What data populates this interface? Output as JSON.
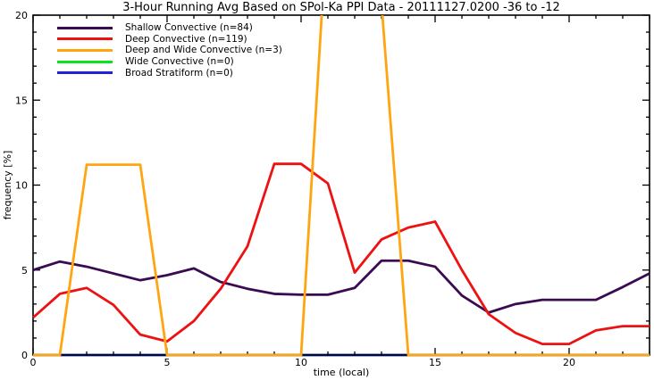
{
  "chart_data": {
    "type": "line",
    "title": "3-Hour Running Avg Based on SPol-Ka PPI Data - 20111127.0200 -36 to -12",
    "xlabel": "time (local)",
    "ylabel": "frequency [%]",
    "xlim": [
      0,
      23
    ],
    "ylim": [
      0,
      20
    ],
    "x_major_ticks": [
      0,
      5,
      10,
      15,
      20
    ],
    "x_minor_step": 1,
    "y_major_ticks": [
      0,
      5,
      10,
      15,
      20
    ],
    "y_minor_step": 1,
    "grid": false,
    "legend_position": "top-left",
    "axis_color": "#000000",
    "x": [
      0,
      1,
      2,
      3,
      4,
      5,
      6,
      7,
      8,
      9,
      10,
      11,
      12,
      13,
      14,
      15,
      16,
      17,
      18,
      19,
      20,
      21,
      22,
      23
    ],
    "series": [
      {
        "name": "Shallow Convective (n=84)",
        "color": "#3a0b52",
        "values": [
          5.0,
          5.5,
          5.2,
          4.8,
          4.4,
          4.7,
          5.1,
          4.3,
          3.9,
          3.6,
          3.55,
          3.55,
          3.95,
          5.55,
          5.55,
          5.2,
          3.5,
          2.5,
          3.0,
          3.25,
          3.25,
          3.25,
          4.0,
          4.8
        ]
      },
      {
        "name": "Deep Convective (n=119)",
        "color": "#ee1111",
        "values": [
          2.2,
          3.6,
          3.95,
          2.95,
          1.2,
          0.8,
          2.0,
          3.9,
          6.4,
          11.25,
          11.25,
          10.1,
          4.85,
          6.8,
          7.5,
          7.85,
          5.0,
          2.4,
          1.3,
          0.65,
          0.65,
          1.45,
          1.7,
          1.7
        ]
      },
      {
        "name": "Deep and Wide Convective (n=3)",
        "color": "#ffa512",
        "values": [
          0,
          0,
          11.2,
          11.2,
          11.2,
          0,
          0,
          0,
          0,
          0,
          0,
          26,
          26,
          20.7,
          0,
          0,
          0,
          0,
          0,
          0,
          0,
          0,
          0,
          0
        ]
      },
      {
        "name": "Wide Convective (n=0)",
        "color": "#0ce41c",
        "values": [
          0,
          0,
          0,
          0,
          0,
          0,
          0,
          0,
          0,
          0,
          0,
          0,
          0,
          0,
          0,
          0,
          0,
          0,
          0,
          0,
          0,
          0,
          0,
          0
        ]
      },
      {
        "name": "Broad Stratiform (n=0)",
        "color": "#2121dc",
        "values": [
          0,
          0,
          0,
          0,
          0,
          0,
          0,
          0,
          0,
          0,
          0,
          0,
          0,
          0,
          0,
          0,
          0,
          0,
          0,
          0,
          0,
          0,
          0,
          0
        ]
      }
    ]
  }
}
